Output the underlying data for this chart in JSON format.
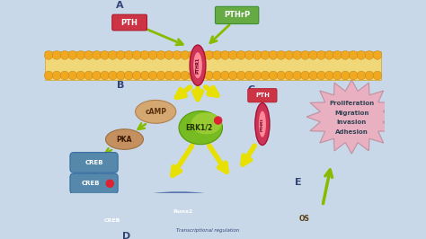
{
  "bg_color": "#c8d8e8",
  "arrow_color_green": "#88bb00",
  "arrow_color_yellow": "#e8e000",
  "PTH_box_color": "#cc3344",
  "PTHrP_box_color": "#66aa44",
  "receptor_outer": "#cc3355",
  "receptor_inner": "#ff8899",
  "cAMP_color": "#d4a870",
  "PKA_color": "#c49060",
  "CREB_color": "#5588aa",
  "ERK_color": "#77bb22",
  "nucleus_color": "#7090c8",
  "Runx2_color": "#8860b0",
  "OS_color": "#f0e8a0",
  "star_color": "#e8b0c0",
  "star_edge": "#c090a0",
  "mem_body": "#f0d878",
  "mem_circle": "#f0a820",
  "mem_circle_edge": "#c08010",
  "labels": [
    "A",
    "B",
    "C",
    "D",
    "E"
  ],
  "proliferation_texts": [
    "Proliferation",
    "Migration",
    "Invasion",
    "Adhesion"
  ],
  "label_color": "#334477",
  "label_fontsize": 8,
  "white": "#ffffff",
  "dark_text": "#223300",
  "nucleus_text_color": "#334477",
  "red_dot": "#dd2233"
}
